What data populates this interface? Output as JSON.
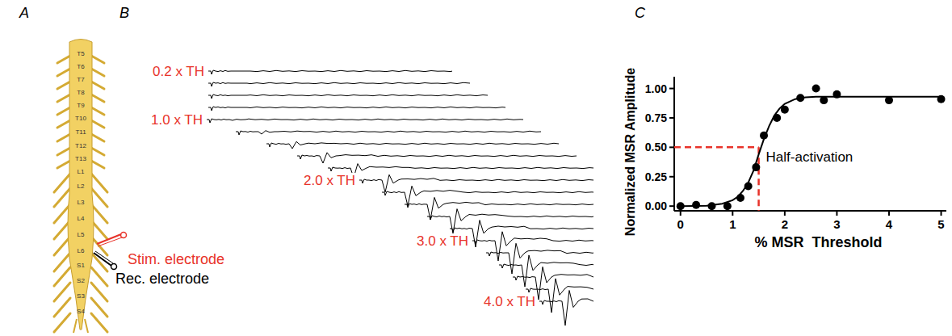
{
  "panel_a": {
    "panel_label": "A",
    "segments": [
      "T5",
      "T6",
      "T7",
      "T8",
      "T9",
      "T10",
      "T11",
      "T12",
      "T13",
      "L1",
      "L2",
      "L3",
      "L4",
      "L5",
      "L6",
      "S1",
      "S2",
      "S3",
      "S4"
    ],
    "electrodes": [
      {
        "label": "Stim. electrode",
        "color": "#e8332a"
      },
      {
        "label": "Rec. electrode",
        "color": "#000000"
      }
    ]
  },
  "panel_b": {
    "panel_label": "B",
    "color": "#e8332a",
    "trace_labels": [
      "0.2 x TH",
      null,
      null,
      null,
      "1.0 x TH",
      null,
      null,
      null,
      null,
      "2.0 x TH",
      null,
      null,
      null,
      null,
      "3.0 x TH",
      null,
      null,
      null,
      null,
      "4.0 x TH"
    ]
  },
  "chart_data": {
    "panel_label": "C",
    "type": "scatter",
    "x_label": "% MSR  Threshold",
    "y_label": "Normalized MSR Amplitude",
    "xlim": [
      -0.12,
      5.1
    ],
    "xticks": [
      0,
      1,
      2,
      3,
      4,
      5
    ],
    "ylim": [
      -0.04,
      1.1
    ],
    "yticks": [
      {
        "value": 0,
        "label": "0.00"
      },
      {
        "value": 0.25,
        "label": "0.25"
      },
      {
        "value": 0.5,
        "label": "0.50"
      },
      {
        "value": 0.75,
        "label": "0.75"
      },
      {
        "value": 1,
        "label": "1.00"
      }
    ],
    "grid": false,
    "series": [
      {
        "type": "scatter",
        "marker": "circle",
        "color": "#000000",
        "x": [
          0,
          0.3,
          0.6,
          0.9,
          1.15,
          1.3,
          1.45,
          1.6,
          1.85,
          2.0,
          2.3,
          2.6,
          2.75,
          3.0,
          4.0,
          5.0
        ],
        "values": [
          0,
          0.01,
          0,
          0,
          0.07,
          0.17,
          0.33,
          0.6,
          0.75,
          0.82,
          0.92,
          1.0,
          0.9,
          0.95,
          0.9,
          0.91
        ]
      },
      {
        "type": "line",
        "color": "#000000",
        "x": [
          0,
          0.5,
          0.8,
          1.0,
          1.1,
          1.2,
          1.3,
          1.4,
          1.5,
          1.6,
          1.7,
          1.8,
          1.9,
          2.0,
          2.2,
          2.4,
          2.6,
          3.0,
          3.5,
          4.0,
          5.0
        ],
        "values": [
          0,
          0.003,
          0.02,
          0.05,
          0.08,
          0.13,
          0.2,
          0.3,
          0.44,
          0.57,
          0.68,
          0.77,
          0.83,
          0.87,
          0.91,
          0.925,
          0.93,
          0.93,
          0.93,
          0.93,
          0.93
        ]
      }
    ],
    "annotations": [
      {
        "text": "Half-activation",
        "x": 1.5,
        "y": 0.5,
        "color": "#e8332a"
      }
    ]
  }
}
